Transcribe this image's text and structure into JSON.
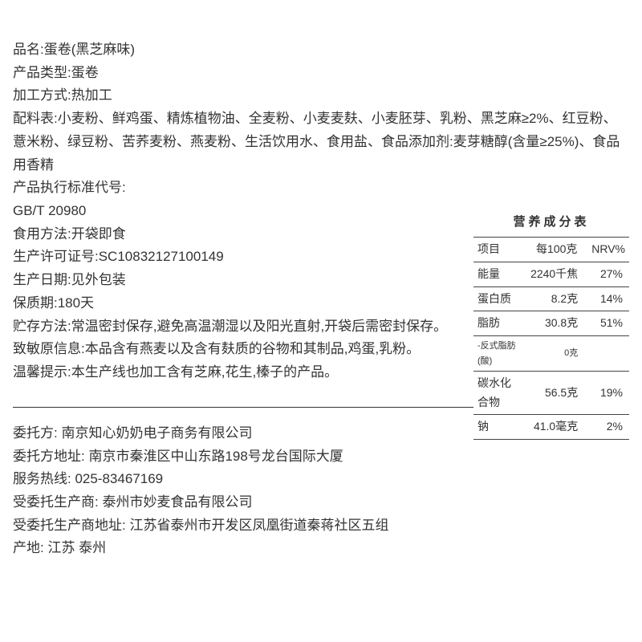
{
  "info": {
    "lines": [
      "品名:蛋卷(黑芝麻味)",
      "产品类型:蛋卷",
      "加工方式:热加工",
      "配料表:小麦粉、鲜鸡蛋、精炼植物油、全麦粉、小麦麦麸、小麦胚芽、乳粉、黑芝麻≥2%、红豆粉、薏米粉、绿豆粉、苦荞麦粉、燕麦粉、生活饮用水、食用盐、食品添加剂:麦芽糖醇(含量≥25%)、食品用香精",
      "产品执行标准代号:",
      "GB/T 20980",
      "食用方法:开袋即食",
      "生产许可证号:SC10832127100149",
      "生产日期:见外包装",
      "保质期:180天",
      "贮存方法:常温密封保存,避免高温潮湿以及阳光直射,开袋后需密封保存。",
      "致敏原信息:本品含有燕麦以及含有麸质的谷物和其制品,鸡蛋,乳粉。",
      "温馨提示:本生产线也加工含有芝麻,花生,榛子的产品。"
    ]
  },
  "footer": {
    "lines": [
      "委托方:  南京知心奶奶电子商务有限公司",
      "委托方地址:  南京市秦淮区中山东路198号龙台国际大厦",
      "服务热线:  025-83467169",
      "受委托生产商:  泰州市妙麦食品有限公司",
      "受委托生产商地址:  江苏省泰州市开发区凤凰街道秦蒋社区五组",
      "产地:  江苏 泰州"
    ]
  },
  "nutrition": {
    "title": "营养成分表",
    "header": {
      "item": "项目",
      "per": "每100克",
      "nrv": "NRV%"
    },
    "rows": [
      {
        "item": "能量",
        "per": "2240千焦",
        "nrv": "27%",
        "sub": false
      },
      {
        "item": "蛋白质",
        "per": "8.2克",
        "nrv": "14%",
        "sub": false
      },
      {
        "item": "脂肪",
        "per": "30.8克",
        "nrv": "51%",
        "sub": false
      },
      {
        "item": "-反式脂肪(酸)",
        "per": "0克",
        "nrv": "",
        "sub": true
      },
      {
        "item": "碳水化合物",
        "per": "56.5克",
        "nrv": "19%",
        "sub": false
      },
      {
        "item": "钠",
        "per": "41.0毫克",
        "nrv": "2%",
        "sub": false
      }
    ]
  }
}
